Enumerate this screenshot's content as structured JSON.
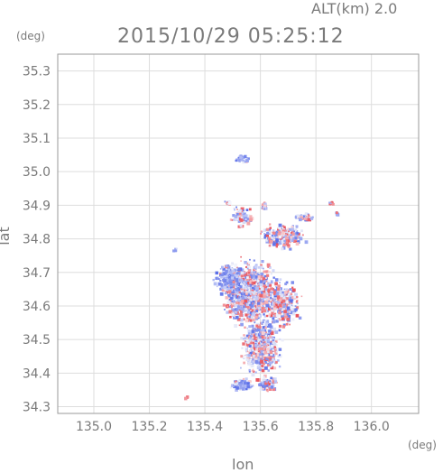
{
  "header": {
    "alt_label": "ALT(km) 2.0",
    "timestamp": "2015/10/29 05:25:12"
  },
  "chart_data": {
    "type": "heatmap",
    "title": "2015/10/29 05:25:12",
    "xlabel": "lon",
    "ylabel": "lat",
    "xunit": "(deg)",
    "yunit": "(deg)",
    "xlim": [
      134.87,
      136.17
    ],
    "ylim": [
      34.28,
      35.35
    ],
    "xticks": [
      "135.0",
      "135.2",
      "135.4",
      "135.6",
      "135.8",
      "136.0"
    ],
    "yticks": [
      "34.3",
      "34.4",
      "34.5",
      "34.6",
      "34.7",
      "34.8",
      "34.9",
      "35.0",
      "35.1",
      "35.2",
      "35.3"
    ],
    "grid": true,
    "colors": {
      "positive": "#e8505a",
      "negative": "#5a6ee8",
      "neutral": "#d8dcf4",
      "frame": "#999999"
    },
    "clusters": [
      {
        "lon": 135.53,
        "lat": 35.04,
        "r_lon": 0.022,
        "r_lat": 0.01,
        "n": 40,
        "bias": "neg"
      },
      {
        "lon": 135.48,
        "lat": 34.91,
        "r_lon": 0.01,
        "r_lat": 0.006,
        "n": 10,
        "bias": "mix"
      },
      {
        "lon": 135.53,
        "lat": 34.87,
        "r_lon": 0.03,
        "r_lat": 0.025,
        "n": 90,
        "bias": "mix"
      },
      {
        "lon": 135.61,
        "lat": 34.9,
        "r_lon": 0.01,
        "r_lat": 0.01,
        "n": 20,
        "bias": "mix"
      },
      {
        "lon": 135.68,
        "lat": 34.81,
        "r_lon": 0.07,
        "r_lat": 0.03,
        "n": 280,
        "bias": "mix"
      },
      {
        "lon": 135.75,
        "lat": 34.87,
        "r_lon": 0.03,
        "r_lat": 0.01,
        "n": 40,
        "bias": "mix"
      },
      {
        "lon": 135.85,
        "lat": 34.91,
        "r_lon": 0.01,
        "r_lat": 0.006,
        "n": 12,
        "bias": "pos"
      },
      {
        "lon": 135.87,
        "lat": 34.88,
        "r_lon": 0.006,
        "r_lat": 0.004,
        "n": 8,
        "bias": "neg"
      },
      {
        "lon": 135.29,
        "lat": 34.77,
        "r_lon": 0.006,
        "r_lat": 0.005,
        "n": 6,
        "bias": "neg"
      },
      {
        "lon": 135.56,
        "lat": 34.64,
        "r_lon": 0.08,
        "r_lat": 0.08,
        "n": 1300,
        "bias": "mix"
      },
      {
        "lon": 135.6,
        "lat": 34.48,
        "r_lon": 0.06,
        "r_lat": 0.07,
        "n": 700,
        "bias": "mix"
      },
      {
        "lon": 135.48,
        "lat": 34.68,
        "r_lon": 0.04,
        "r_lat": 0.04,
        "n": 200,
        "bias": "neg"
      },
      {
        "lon": 135.53,
        "lat": 34.37,
        "r_lon": 0.04,
        "r_lat": 0.015,
        "n": 90,
        "bias": "neg"
      },
      {
        "lon": 135.62,
        "lat": 34.37,
        "r_lon": 0.04,
        "r_lat": 0.02,
        "n": 70,
        "bias": "mix"
      },
      {
        "lon": 135.33,
        "lat": 34.33,
        "r_lon": 0.006,
        "r_lat": 0.004,
        "n": 5,
        "bias": "pos"
      },
      {
        "lon": 135.68,
        "lat": 34.61,
        "r_lon": 0.05,
        "r_lat": 0.06,
        "n": 300,
        "bias": "mix"
      }
    ]
  }
}
